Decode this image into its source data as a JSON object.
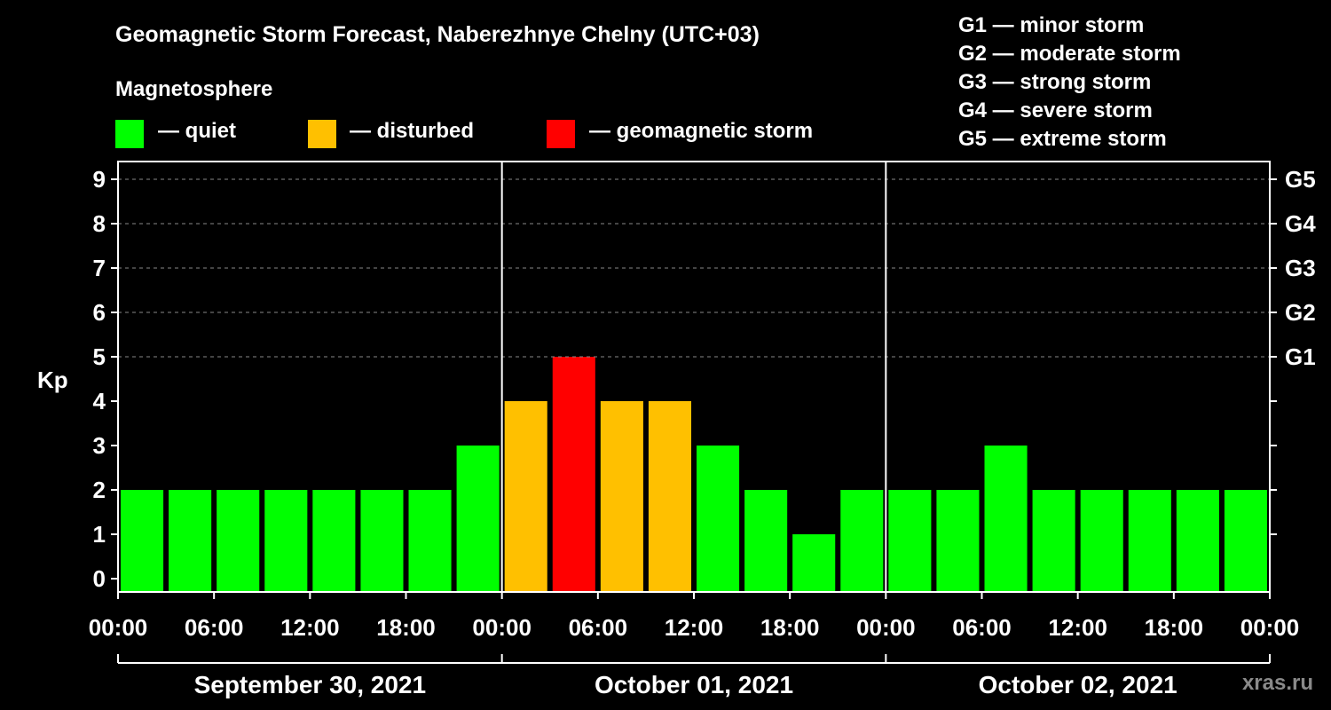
{
  "title": "Geomagnetic Storm Forecast, Naberezhnye Chelny (UTC+03)",
  "magnetosphere_label": "Magnetosphere",
  "legend": [
    {
      "label": "— quiet",
      "color": "#00ff00"
    },
    {
      "label": "— disturbed",
      "color": "#ffc000"
    },
    {
      "label": "— geomagnetic storm",
      "color": "#ff0000"
    }
  ],
  "g_levels": [
    "G1 — minor storm",
    "G2 — moderate storm",
    "G3 — strong storm",
    "G4 — severe storm",
    "G5 — extreme storm"
  ],
  "watermark": "xras.ru",
  "chart_data": {
    "type": "bar",
    "ylabel": "Kp",
    "ylim": [
      0,
      9
    ],
    "y_ticks": [
      "0",
      "1",
      "2",
      "3",
      "4",
      "5",
      "6",
      "7",
      "8",
      "9"
    ],
    "right_ticks": [
      {
        "kp": 5,
        "label": "G1"
      },
      {
        "kp": 6,
        "label": "G2"
      },
      {
        "kp": 7,
        "label": "G3"
      },
      {
        "kp": 8,
        "label": "G4"
      },
      {
        "kp": 9,
        "label": "G5"
      }
    ],
    "x_tick_labels": [
      "00:00",
      "06:00",
      "12:00",
      "18:00",
      "00:00",
      "06:00",
      "12:00",
      "18:00",
      "00:00",
      "06:00",
      "12:00",
      "18:00",
      "00:00"
    ],
    "days": [
      "September 30, 2021",
      "October 01, 2021",
      "October 02, 2021"
    ],
    "interval_hours": 3,
    "values": [
      2,
      2,
      2,
      2,
      2,
      2,
      2,
      3,
      4,
      5,
      4,
      4,
      3,
      2,
      1,
      2,
      2,
      2,
      3,
      2,
      2,
      2,
      2,
      2
    ],
    "colors": {
      "quiet": "#00ff00",
      "disturbed": "#ffc000",
      "storm": "#ff0000"
    },
    "grid": "dashed horizontal at Kp 5-9"
  }
}
